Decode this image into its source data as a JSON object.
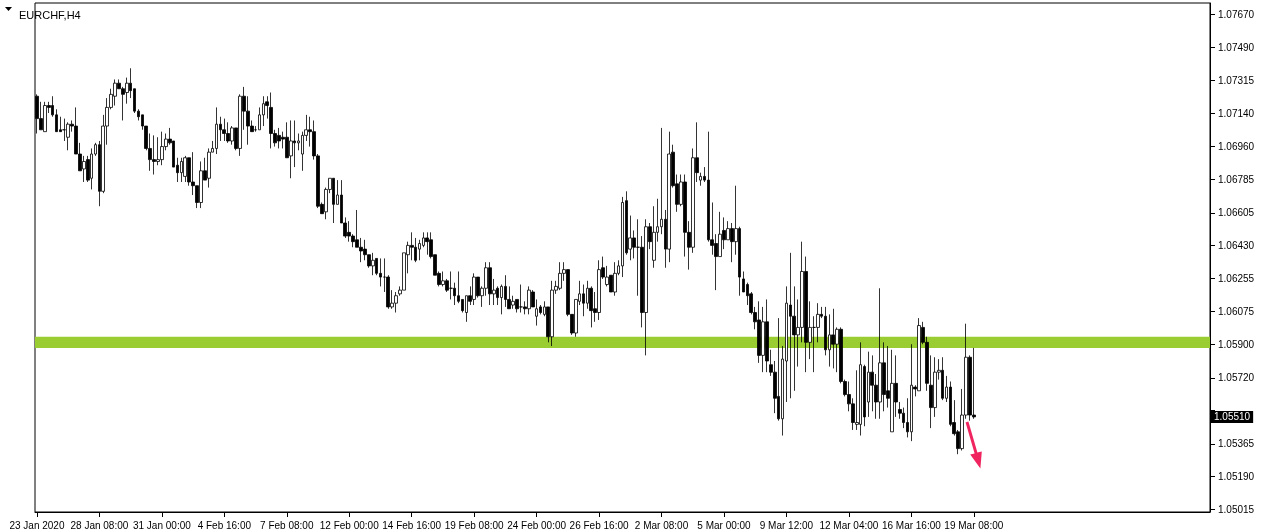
{
  "chart_data": {
    "type": "candlestick",
    "title": "EURCHF,H4",
    "color": "#000000",
    "categories": [
      "23 Jan 2020",
      null,
      null,
      null,
      null,
      null,
      null,
      null,
      null,
      null,
      null,
      null,
      null,
      null,
      null,
      null,
      "28 Jan 08:00",
      null,
      null,
      null,
      null,
      null,
      null,
      null,
      null,
      null,
      null,
      null,
      null,
      null,
      null,
      null,
      "31 Jan 00:00",
      null,
      null,
      null,
      null,
      null,
      null,
      null,
      null,
      null,
      null,
      null,
      null,
      null,
      null,
      null,
      "4 Feb 16:00",
      null,
      null,
      null,
      null,
      null,
      null,
      null,
      null,
      null,
      null,
      null,
      null,
      null,
      null,
      null,
      "7 Feb 08:00",
      null,
      null,
      null,
      null,
      null,
      null,
      null,
      null,
      null,
      null,
      null,
      null,
      null,
      null,
      null,
      "12 Feb 00:00",
      null,
      null,
      null,
      null,
      null,
      null,
      null,
      null,
      null,
      null,
      null,
      null,
      null,
      null,
      null,
      "14 Feb 16:00",
      null,
      null,
      null,
      null,
      null,
      null,
      null,
      null,
      null,
      null,
      null,
      null,
      null,
      null,
      null,
      "19 Feb 08:00",
      null,
      null,
      null,
      null,
      null,
      null,
      null,
      null,
      null,
      null,
      null,
      null,
      null,
      null,
      null,
      "24 Feb 00:00",
      null,
      null,
      null,
      null,
      null,
      null,
      null,
      null,
      null,
      null,
      null,
      null,
      null,
      null,
      null,
      "26 Feb 16:00",
      null,
      null,
      null,
      null,
      null,
      null,
      null,
      null,
      null,
      null,
      null,
      null,
      null,
      null,
      null,
      "2 Mar 08:00",
      null,
      null,
      null,
      null,
      null,
      null,
      null,
      null,
      null,
      null,
      null,
      null,
      null,
      null,
      null,
      "5 Mar 00:00",
      null,
      null,
      null,
      null,
      null,
      null,
      null,
      null,
      null,
      null,
      null,
      null,
      null,
      null,
      null,
      "9 Mar 12:00",
      null,
      null,
      null,
      null,
      null,
      null,
      null,
      null,
      null,
      null,
      null,
      null,
      null,
      null,
      null,
      "12 Mar 04:00",
      null,
      null,
      null,
      null,
      null,
      null,
      null,
      null,
      null,
      null,
      null,
      null,
      null,
      null,
      null,
      "16 Mar 16:00",
      null,
      null,
      null,
      null,
      null,
      null,
      null,
      null,
      null,
      null,
      null,
      null,
      null,
      null,
      null,
      "19 Mar 08:00",
      null,
      null,
      null,
      null,
      null,
      null,
      null,
      null,
      null,
      null,
      null,
      null,
      null,
      null,
      null,
      null,
      null,
      null,
      null,
      null,
      null,
      null,
      null,
      null,
      null,
      null,
      null,
      null,
      null,
      null,
      null,
      null,
      null,
      null,
      null,
      null,
      null,
      null,
      null,
      null,
      null,
      null,
      null,
      null,
      null,
      null,
      null,
      null,
      null,
      null,
      null,
      null,
      null,
      null,
      null,
      null,
      null,
      null,
      null,
      null
    ],
    "ohlc": [
      [
        1.0723,
        1.0724,
        1.0703,
        1.0711
      ],
      [
        1.0711,
        1.072,
        1.0705,
        1.0705
      ],
      [
        1.0704,
        1.072,
        1.0704,
        1.0718
      ],
      [
        1.0718,
        1.072,
        1.0714,
        1.0717
      ],
      [
        1.0718,
        1.0723,
        1.0712,
        1.0713
      ],
      [
        1.0713,
        1.0716,
        1.0704,
        1.0704
      ],
      [
        1.0705,
        1.0712,
        1.0704,
        1.0704
      ],
      [
        1.0705,
        1.0711,
        1.0699,
        1.0705
      ],
      [
        1.0701,
        1.0709,
        1.0694,
        1.0708
      ],
      [
        1.0708,
        1.071,
        1.0704,
        1.0707
      ],
      [
        1.0707,
        1.0717,
        1.0692,
        1.0692
      ],
      [
        1.0692,
        1.0698,
        1.0683,
        1.0683
      ],
      [
        1.0684,
        1.0691,
        1.0677,
        1.0688
      ],
      [
        1.0689,
        1.0691,
        1.0677,
        1.0678
      ],
      [
        1.0679,
        1.0695,
        1.0673,
        1.0692
      ],
      [
        1.0692,
        1.0698,
        1.0691,
        1.0697
      ],
      [
        1.0697,
        1.0699,
        1.0664,
        1.0672
      ],
      [
        1.0672,
        1.0713,
        1.0671,
        1.0707
      ],
      [
        1.0707,
        1.0722,
        1.0697,
        1.0717
      ],
      [
        1.0717,
        1.0727,
        1.0716,
        1.0724
      ],
      [
        1.0723,
        1.0732,
        1.0718,
        1.073
      ],
      [
        1.073,
        1.0732,
        1.0727,
        1.0727
      ],
      [
        1.0727,
        1.0728,
        1.071,
        1.0724
      ],
      [
        1.0725,
        1.0733,
        1.0719,
        1.073
      ],
      [
        1.073,
        1.0738,
        1.0722,
        1.0726
      ],
      [
        1.0727,
        1.0727,
        1.0714,
        1.0715
      ],
      [
        1.0715,
        1.0716,
        1.071,
        1.0712
      ],
      [
        1.0713,
        1.0713,
        1.0705,
        1.0707
      ],
      [
        1.0707,
        1.0707,
        1.0694,
        1.0695
      ],
      [
        1.0695,
        1.0703,
        1.0683,
        1.0689
      ],
      [
        1.0689,
        1.0702,
        1.0681,
        1.0688
      ],
      [
        1.0688,
        1.0701,
        1.0686,
        1.0689
      ],
      [
        1.0689,
        1.0704,
        1.0686,
        1.0696
      ],
      [
        1.0696,
        1.0703,
        1.0694,
        1.07
      ],
      [
        1.07,
        1.0706,
        1.0697,
        1.0698
      ],
      [
        1.0699,
        1.0699,
        1.0685,
        1.0685
      ],
      [
        1.0686,
        1.069,
        1.0677,
        1.0682
      ],
      [
        1.0682,
        1.069,
        1.0677,
        1.0688
      ],
      [
        1.068,
        1.0691,
        1.0677,
        1.069
      ],
      [
        1.069,
        1.069,
        1.0675,
        1.0677
      ],
      [
        1.0677,
        1.0693,
        1.067,
        1.0675
      ],
      [
        1.0675,
        1.0675,
        1.0663,
        1.0666
      ],
      [
        1.0666,
        1.0688,
        1.0663,
        1.0683
      ],
      [
        1.0683,
        1.069,
        1.0678,
        1.0678
      ],
      [
        1.0679,
        1.0695,
        1.0674,
        1.0693
      ],
      [
        1.0693,
        1.0699,
        1.0693,
        1.0695
      ],
      [
        1.0695,
        1.0717,
        1.0692,
        1.0708
      ],
      [
        1.0708,
        1.0712,
        1.0699,
        1.0705
      ],
      [
        1.0705,
        1.0711,
        1.0699,
        1.0703
      ],
      [
        1.0703,
        1.0709,
        1.0698,
        1.0699
      ],
      [
        1.0699,
        1.0707,
        1.0697,
        1.0706
      ],
      [
        1.0706,
        1.0706,
        1.0694,
        1.0695
      ],
      [
        1.0695,
        1.0724,
        1.0691,
        1.0723
      ],
      [
        1.0723,
        1.0728,
        1.0705,
        1.0715
      ],
      [
        1.0715,
        1.0723,
        1.0697,
        1.0707
      ],
      [
        1.0707,
        1.071,
        1.0704,
        1.0704
      ],
      [
        1.0705,
        1.0707,
        1.0704,
        1.0705
      ],
      [
        1.0705,
        1.0717,
        1.0705,
        1.0713
      ],
      [
        1.0713,
        1.0723,
        1.0707,
        1.0719
      ],
      [
        1.072,
        1.0723,
        1.0711,
        1.0718
      ],
      [
        1.0717,
        1.0725,
        1.0695,
        1.0703
      ],
      [
        1.0703,
        1.0705,
        1.0696,
        1.0698
      ],
      [
        1.0702,
        1.0706,
        1.0695,
        1.0699
      ],
      [
        1.0701,
        1.0704,
        1.0695,
        1.07
      ],
      [
        1.0701,
        1.0709,
        1.069,
        1.069
      ],
      [
        1.0691,
        1.071,
        1.0679,
        1.0699
      ],
      [
        1.0699,
        1.071,
        1.0685,
        1.0698
      ],
      [
        1.0698,
        1.0703,
        1.0694,
        1.0699
      ],
      [
        1.0692,
        1.0704,
        1.0683,
        1.0702
      ],
      [
        1.0702,
        1.0713,
        1.0699,
        1.0705
      ],
      [
        1.0705,
        1.0712,
        1.0696,
        1.0704
      ],
      [
        1.0704,
        1.071,
        1.0689,
        1.0691
      ],
      [
        1.0691,
        1.0692,
        1.0663,
        1.0664
      ],
      [
        1.0665,
        1.0666,
        1.066,
        1.066
      ],
      [
        1.0661,
        1.0674,
        1.0657,
        1.0673
      ],
      [
        1.0673,
        1.0679,
        1.0671,
        1.0679
      ],
      [
        1.0679,
        1.0679,
        1.0655,
        1.0665
      ],
      [
        1.0665,
        1.0678,
        1.0665,
        1.067
      ],
      [
        1.067,
        1.0678,
        1.0655,
        1.0655
      ],
      [
        1.0655,
        1.0658,
        1.0647,
        1.0648
      ],
      [
        1.065,
        1.0656,
        1.0645,
        1.0648
      ],
      [
        1.0648,
        1.0649,
        1.0642,
        1.0645
      ],
      [
        1.0646,
        1.0662,
        1.0642,
        1.0642
      ],
      [
        1.0642,
        1.0647,
        1.0634,
        1.064
      ],
      [
        1.0641,
        1.0646,
        1.0635,
        1.0638
      ],
      [
        1.0638,
        1.0638,
        1.0631,
        1.0632
      ],
      [
        1.0632,
        1.0639,
        1.0627,
        1.0635
      ],
      [
        1.0636,
        1.0636,
        1.0627,
        1.0628
      ],
      [
        1.0628,
        1.0636,
        1.0621,
        1.0626
      ],
      [
        1.0626,
        1.0636,
        1.0618,
        1.0626
      ],
      [
        1.0626,
        1.0627,
        1.0609,
        1.061
      ],
      [
        1.061,
        1.0619,
        1.0609,
        1.0612
      ],
      [
        1.0612,
        1.0618,
        1.0607,
        1.0616
      ],
      [
        1.0617,
        1.0621,
        1.0616,
        1.0619
      ],
      [
        1.0619,
        1.0639,
        1.0619,
        1.0639
      ],
      [
        1.0638,
        1.0645,
        1.0628,
        1.0643
      ],
      [
        1.0643,
        1.065,
        1.0635,
        1.0642
      ],
      [
        1.0642,
        1.0647,
        1.0634,
        1.0635
      ],
      [
        1.0641,
        1.0646,
        1.0635,
        1.0644
      ],
      [
        1.0643,
        1.065,
        1.0642,
        1.0647
      ],
      [
        1.0647,
        1.065,
        1.0638,
        1.0645
      ],
      [
        1.0646,
        1.065,
        1.0636,
        1.0637
      ],
      [
        1.0638,
        1.0638,
        1.0627,
        1.0627
      ],
      [
        1.0628,
        1.0629,
        1.0621,
        1.0622
      ],
      [
        1.0622,
        1.0629,
        1.0621,
        1.0624
      ],
      [
        1.0624,
        1.0625,
        1.0618,
        1.0619
      ],
      [
        1.062,
        1.0629,
        1.0614,
        1.062
      ],
      [
        1.062,
        1.0623,
        1.0611,
        1.0616
      ],
      [
        1.0616,
        1.0629,
        1.0612,
        1.0613
      ],
      [
        1.0614,
        1.0614,
        1.0607,
        1.0608
      ],
      [
        1.0607,
        1.0616,
        1.0602,
        1.0616
      ],
      [
        1.0616,
        1.0621,
        1.0611,
        1.0613
      ],
      [
        1.0614,
        1.0628,
        1.0611,
        1.0626
      ],
      [
        1.0626,
        1.0626,
        1.0615,
        1.0616
      ],
      [
        1.0616,
        1.0621,
        1.061,
        1.062
      ],
      [
        1.062,
        1.0634,
        1.0616,
        1.0631
      ],
      [
        1.0631,
        1.0634,
        1.0611,
        1.0617
      ],
      [
        1.0617,
        1.0625,
        1.0611,
        1.0619
      ],
      [
        1.062,
        1.0621,
        1.0611,
        1.0615
      ],
      [
        1.0615,
        1.0622,
        1.0606,
        1.0621
      ],
      [
        1.0621,
        1.0627,
        1.061,
        1.0614
      ],
      [
        1.0614,
        1.0621,
        1.0609,
        1.0609
      ],
      [
        1.0611,
        1.0616,
        1.0609,
        1.0613
      ],
      [
        1.0614,
        1.0614,
        1.0607,
        1.0609
      ],
      [
        1.061,
        1.0622,
        1.0607,
        1.061
      ],
      [
        1.061,
        1.0613,
        1.0606,
        1.0609
      ],
      [
        1.0609,
        1.0621,
        1.0606,
        1.0619
      ],
      [
        1.0618,
        1.0619,
        1.061,
        1.061
      ],
      [
        1.0605,
        1.0614,
        1.06,
        1.0609
      ],
      [
        1.061,
        1.0611,
        1.0606,
        1.0607
      ],
      [
        1.0606,
        1.0613,
        1.0605,
        1.061
      ],
      [
        1.061,
        1.061,
        1.0591,
        1.0594
      ],
      [
        1.0594,
        1.0624,
        1.0589,
        1.0619
      ],
      [
        1.0619,
        1.0624,
        1.0617,
        1.0621
      ],
      [
        1.062,
        1.0634,
        1.0619,
        1.0628
      ],
      [
        1.0628,
        1.0634,
        1.0624,
        1.063
      ],
      [
        1.063,
        1.063,
        1.0605,
        1.0606
      ],
      [
        1.0606,
        1.0606,
        1.0595,
        1.0596
      ],
      [
        1.0596,
        1.0614,
        1.0594,
        1.0614
      ],
      [
        1.0613,
        1.0624,
        1.0611,
        1.0617
      ],
      [
        1.0617,
        1.0622,
        1.0605,
        1.0612
      ],
      [
        1.0612,
        1.0624,
        1.0609,
        1.062
      ],
      [
        1.062,
        1.0621,
        1.0599,
        1.0608
      ],
      [
        1.0609,
        1.0618,
        1.0602,
        1.0607
      ],
      [
        1.0607,
        1.0635,
        1.0603,
        1.063
      ],
      [
        1.0631,
        1.0637,
        1.0625,
        1.0626
      ],
      [
        1.0622,
        1.0632,
        1.0621,
        1.0626
      ],
      [
        1.0627,
        1.0627,
        1.0618,
        1.0618
      ],
      [
        1.0618,
        1.0634,
        1.0616,
        1.0628
      ],
      [
        1.0628,
        1.0635,
        1.0627,
        1.0632
      ],
      [
        1.0632,
        1.0669,
        1.0626,
        1.0666
      ],
      [
        1.0667,
        1.0672,
        1.0638,
        1.0639
      ],
      [
        1.0641,
        1.0659,
        1.0635,
        1.0647
      ],
      [
        1.0647,
        1.0651,
        1.0636,
        1.0642
      ],
      [
        1.0642,
        1.0657,
        1.0616,
        1.0642
      ],
      [
        1.0642,
        1.0648,
        1.0599,
        1.0607
      ],
      [
        1.0607,
        1.0657,
        1.0584,
        1.0653
      ],
      [
        1.0653,
        1.0655,
        1.0641,
        1.0645
      ],
      [
        1.0635,
        1.0664,
        1.0631,
        1.065
      ],
      [
        1.065,
        1.0668,
        1.0645,
        1.0653
      ],
      [
        1.0653,
        1.0706,
        1.0649,
        1.0657
      ],
      [
        1.0657,
        1.0662,
        1.0631,
        1.0641
      ],
      [
        1.0641,
        1.0704,
        1.0634,
        1.0692
      ],
      [
        1.0693,
        1.0697,
        1.0674,
        1.0675
      ],
      [
        1.0676,
        1.0681,
        1.0661,
        1.0665
      ],
      [
        1.0665,
        1.0681,
        1.0664,
        1.0677
      ],
      [
        1.0677,
        1.0681,
        1.0637,
        1.065
      ],
      [
        1.065,
        1.0656,
        1.063,
        1.0642
      ],
      [
        1.0642,
        1.0695,
        1.0639,
        1.069
      ],
      [
        1.069,
        1.0709,
        1.0677,
        1.0682
      ],
      [
        1.0678,
        1.0682,
        1.0675,
        1.068
      ],
      [
        1.068,
        1.0685,
        1.0677,
        1.0678
      ],
      [
        1.0678,
        1.0704,
        1.0645,
        1.0646
      ],
      [
        1.0646,
        1.0666,
        1.0638,
        1.0643
      ],
      [
        1.0644,
        1.0649,
        1.0619,
        1.0637
      ],
      [
        1.0637,
        1.0661,
        1.0637,
        1.0649
      ],
      [
        1.0651,
        1.0658,
        1.0641,
        1.0646
      ],
      [
        1.0646,
        1.0656,
        1.0646,
        1.0652
      ],
      [
        1.0652,
        1.0655,
        1.0634,
        1.0645
      ],
      [
        1.0645,
        1.0675,
        1.0638,
        1.0652
      ],
      [
        1.0652,
        1.0653,
        1.0616,
        1.0626
      ],
      [
        1.0625,
        1.0629,
        1.0618,
        1.0618
      ],
      [
        1.0622,
        1.0623,
        1.0611,
        1.0616
      ],
      [
        1.0617,
        1.0618,
        1.0606,
        1.0607
      ],
      [
        1.0607,
        1.061,
        1.0598,
        1.0602
      ],
      [
        1.0603,
        1.0613,
        1.058,
        1.0584
      ],
      [
        1.0584,
        1.061,
        1.0575,
        1.0602
      ],
      [
        1.0602,
        1.0614,
        1.0575,
        1.0581
      ],
      [
        1.0579,
        1.0587,
        1.0573,
        1.0575
      ],
      [
        1.0575,
        1.0581,
        1.0553,
        1.0561
      ],
      [
        1.0562,
        1.0604,
        1.0549,
        1.055
      ],
      [
        1.055,
        1.0589,
        1.0541,
        1.0582
      ],
      [
        1.0581,
        1.0621,
        1.0559,
        1.0612
      ],
      [
        1.0611,
        1.0639,
        1.0561,
        1.0605
      ],
      [
        1.0605,
        1.0621,
        1.0565,
        1.0595
      ],
      [
        1.0595,
        1.0614,
        1.0578,
        1.0599
      ],
      [
        1.0599,
        1.0645,
        1.0591,
        1.0629
      ],
      [
        1.0629,
        1.0637,
        1.0575,
        1.0591
      ],
      [
        1.0591,
        1.0613,
        1.0582,
        1.0599
      ],
      [
        1.0599,
        1.0605,
        1.0575,
        1.0599
      ],
      [
        1.0599,
        1.0612,
        1.0591,
        1.0606
      ],
      [
        1.0606,
        1.061,
        1.0604,
        1.0605
      ],
      [
        1.0605,
        1.061,
        1.0584,
        1.0587
      ],
      [
        1.0587,
        1.0606,
        1.0578,
        1.0595
      ],
      [
        1.0595,
        1.0609,
        1.0577,
        1.059
      ],
      [
        1.059,
        1.0599,
        1.0575,
        1.0598
      ],
      [
        1.0598,
        1.0599,
        1.0569,
        1.057
      ],
      [
        1.057,
        1.0571,
        1.0562,
        1.0563
      ],
      [
        1.0563,
        1.057,
        1.0554,
        1.0558
      ],
      [
        1.0558,
        1.0561,
        1.0544,
        1.0548
      ],
      [
        1.0547,
        1.0576,
        1.0544,
        1.0548
      ],
      [
        1.0547,
        1.0591,
        1.0541,
        1.0579
      ],
      [
        1.0578,
        1.0579,
        1.0546,
        1.0551
      ],
      [
        1.0559,
        1.0586,
        1.0551,
        1.0575
      ],
      [
        1.0575,
        1.0584,
        1.0554,
        1.0568
      ],
      [
        1.0568,
        1.0574,
        1.055,
        1.0559
      ],
      [
        1.0559,
        1.062,
        1.055,
        1.058
      ],
      [
        1.058,
        1.0591,
        1.0554,
        1.0563
      ],
      [
        1.0565,
        1.0589,
        1.0556,
        1.0561
      ],
      [
        1.0543,
        1.0587,
        1.0543,
        1.0569
      ],
      [
        1.0569,
        1.0584,
        1.0551,
        1.0559
      ],
      [
        1.0555,
        1.0559,
        1.055,
        1.0553
      ],
      [
        1.0553,
        1.0556,
        1.0545,
        1.0548
      ],
      [
        1.0548,
        1.0561,
        1.054,
        1.0543
      ],
      [
        1.0543,
        1.059,
        1.0538,
        1.0568
      ],
      [
        1.0567,
        1.0568,
        1.0562,
        1.0566
      ],
      [
        1.0565,
        1.0604,
        1.0565,
        1.06
      ],
      [
        1.0599,
        1.0602,
        1.059,
        1.0591
      ],
      [
        1.0591,
        1.0594,
        1.0565,
        1.0569
      ],
      [
        1.0568,
        1.0584,
        1.0545,
        1.0556
      ],
      [
        1.0556,
        1.0583,
        1.0551,
        1.0575
      ],
      [
        1.0575,
        1.0582,
        1.0571,
        1.0576
      ],
      [
        1.0576,
        1.0583,
        1.056,
        1.0561
      ],
      [
        1.0561,
        1.0573,
        1.0559,
        1.0567
      ],
      [
        1.0567,
        1.057,
        1.0546,
        1.0547
      ],
      [
        1.0548,
        1.056,
        1.0541,
        1.0542
      ],
      [
        1.0543,
        1.0544,
        1.0531,
        1.0534
      ],
      [
        1.0534,
        1.0566,
        1.0533,
        1.0552
      ],
      [
        1.0552,
        1.0601,
        1.055,
        1.0583
      ],
      [
        1.0583,
        1.0584,
        1.0549,
        1.0552
      ],
      [
        1.0552,
        1.0588,
        1.055,
        1.0551
      ],
      null,
      null,
      null,
      null,
      null,
      null,
      null,
      null,
      null,
      null,
      null,
      null,
      null,
      null,
      null,
      null,
      null,
      null,
      null,
      null,
      null,
      null,
      null,
      null,
      null,
      null,
      null,
      null,
      null,
      null,
      null,
      null,
      null,
      null,
      null,
      null,
      null,
      null,
      null,
      null,
      null,
      null,
      null,
      null,
      null,
      null,
      null,
      null,
      null,
      null,
      null,
      null,
      null,
      null,
      null,
      null,
      null,
      null,
      null,
      null
    ],
    "ylim": [
      1.05,
      1.0773
    ],
    "yticks": [
      {
        "value": 1.0767,
        "label": "1.07670"
      },
      {
        "value": 1.0749,
        "label": "1.07490"
      },
      {
        "value": 1.07315,
        "label": "1.07315"
      },
      {
        "value": 1.0714,
        "label": "1.07140"
      },
      {
        "value": 1.0696,
        "label": "1.06960"
      },
      {
        "value": 1.06785,
        "label": "1.06785"
      },
      {
        "value": 1.06605,
        "label": "1.06605"
      },
      {
        "value": 1.0643,
        "label": "1.06430"
      },
      {
        "value": 1.06255,
        "label": "1.06255"
      },
      {
        "value": 1.06075,
        "label": "1.06075"
      },
      {
        "value": 1.059,
        "label": "1.05900"
      },
      {
        "value": 1.0572,
        "label": "1.05720"
      },
      {
        "value": 1.05545,
        "label": null
      },
      {
        "value": 1.05365,
        "label": "1.05365"
      },
      {
        "value": 1.0519,
        "label": "1.05190"
      },
      {
        "value": 1.05015,
        "label": "1.05015"
      }
    ],
    "bands": [
      {
        "axis": "y",
        "from": 1.0588,
        "to": 1.0594,
        "color": "#9acd32"
      }
    ],
    "annotations": [
      "1.05510"
    ],
    "grid": false
  }
}
